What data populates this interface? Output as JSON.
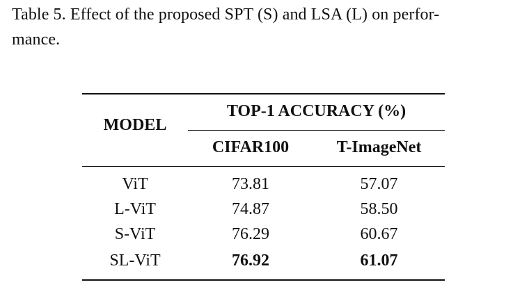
{
  "caption": {
    "line1": "Table 5. Effect of the proposed SPT (S) and LSA (L) on perfor-",
    "line2": "mance."
  },
  "table": {
    "model_header": "MODEL",
    "group_header": "TOP-1 ACCURACY (%)",
    "columns": [
      "CIFAR100",
      "T-ImageNet"
    ],
    "rows": [
      {
        "model": "ViT",
        "cifar100": "73.81",
        "timagenet": "57.07",
        "bold": false
      },
      {
        "model": "L-ViT",
        "cifar100": "74.87",
        "timagenet": "58.50",
        "bold": false
      },
      {
        "model": "S-ViT",
        "cifar100": "76.29",
        "timagenet": "60.67",
        "bold": false
      },
      {
        "model": "SL-ViT",
        "cifar100": "76.92",
        "timagenet": "61.07",
        "bold": true
      }
    ]
  }
}
